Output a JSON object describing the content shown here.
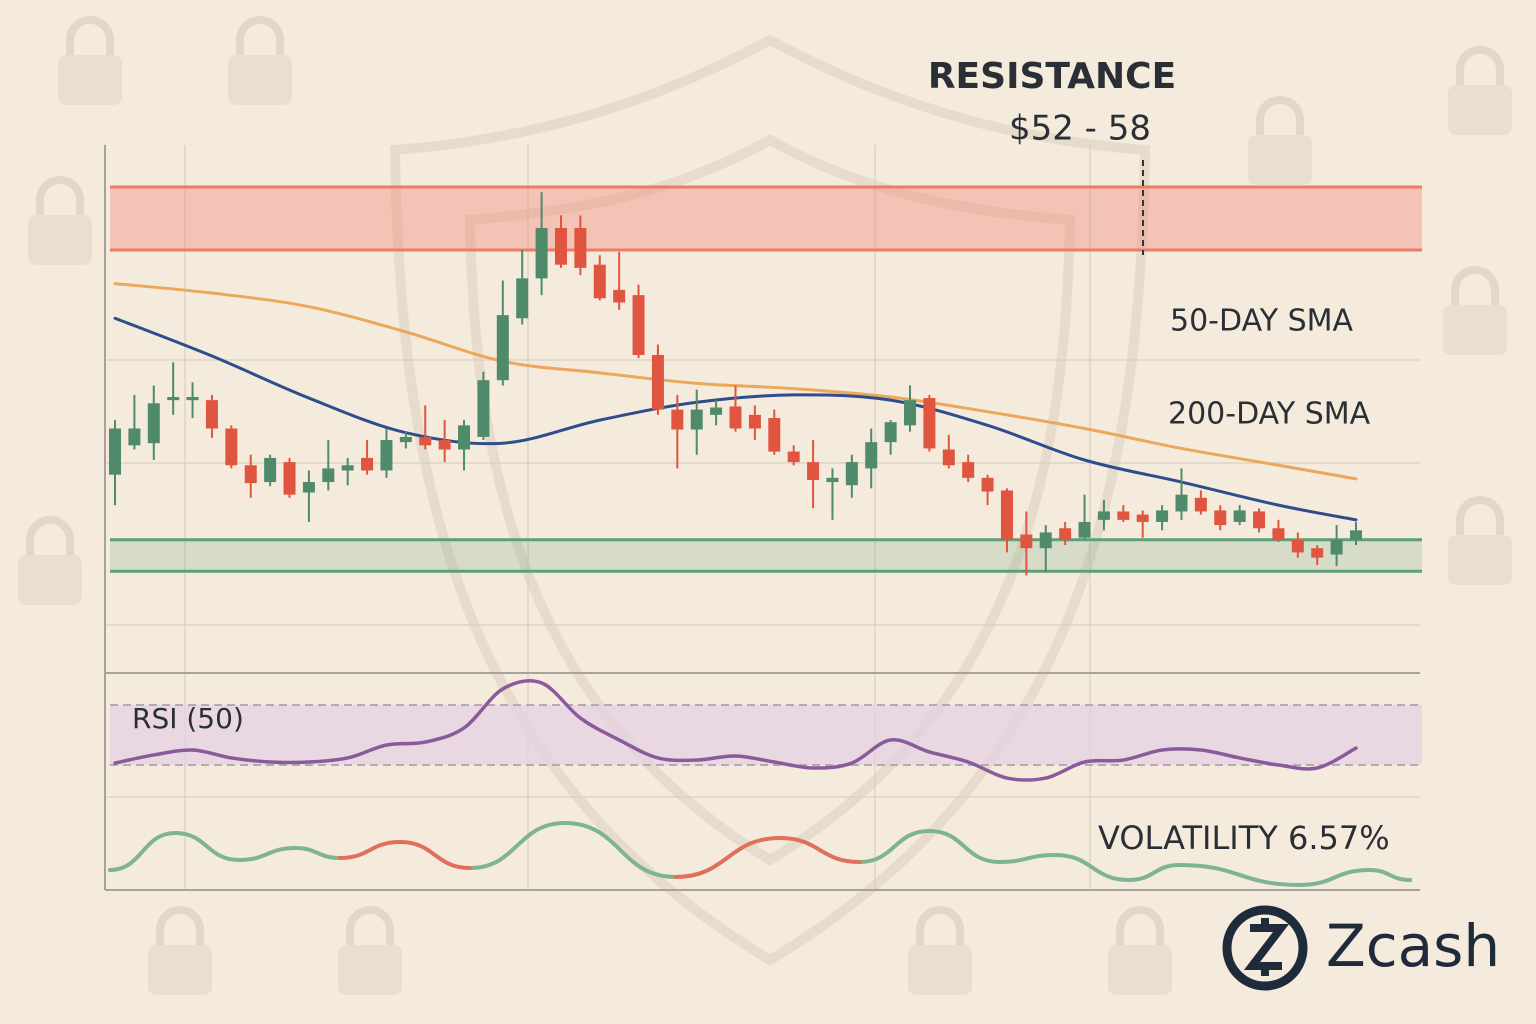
{
  "chart_data": [
    {
      "type": "candlestick",
      "xlim": [
        0,
        64
      ],
      "ylim": [
        12,
        62
      ],
      "up_color": "#4f8a6b",
      "down_color": "#e0553f",
      "open": [
        30.6,
        33.4,
        33.6,
        37.7,
        37.7,
        37.7,
        35.0,
        31.5,
        29.9,
        31.8,
        28.9,
        29.9,
        31.0,
        32.2,
        31.0,
        33.7,
        34.2,
        33.9,
        33.0,
        34.2,
        39.6,
        45.5,
        49.3,
        54.1,
        54.1,
        50.6,
        48.2,
        47.7,
        42.0,
        36.8,
        34.9,
        36.3,
        37.1,
        36.3,
        36.0,
        32.8,
        31.8,
        29.9,
        29.6,
        31.2,
        33.7,
        35.3,
        37.9,
        33.0,
        31.8,
        30.3,
        29.1,
        24.9,
        23.6,
        25.5,
        24.6,
        26.3,
        27.1,
        26.8,
        26.1,
        27.1,
        28.4,
        27.2,
        26.1,
        27.1,
        25.5,
        24.4,
        23.6,
        23.0,
        24.4
      ],
      "high": [
        35.8,
        38.2,
        39.1,
        41.3,
        39.4,
        38.2,
        35.3,
        32.5,
        32.5,
        32.2,
        31.0,
        33.9,
        32.2,
        33.9,
        35.0,
        34.7,
        37.2,
        35.8,
        35.8,
        40.4,
        49.1,
        52.0,
        57.5,
        55.3,
        55.3,
        51.5,
        51.8,
        48.7,
        43.0,
        38.2,
        38.7,
        37.7,
        39.1,
        37.2,
        36.8,
        33.4,
        33.9,
        31.2,
        32.5,
        35.0,
        35.8,
        39.1,
        38.2,
        34.4,
        32.5,
        30.6,
        29.3,
        27.1,
        25.8,
        26.1,
        28.7,
        28.2,
        27.7,
        27.2,
        27.7,
        31.2,
        29.1,
        27.7,
        27.7,
        27.4,
        26.3,
        25.1,
        23.9,
        25.8,
        26.1
      ],
      "low": [
        27.7,
        33.0,
        32.0,
        36.3,
        36.0,
        34.1,
        31.2,
        28.4,
        29.5,
        28.4,
        26.1,
        29.1,
        29.6,
        30.6,
        30.3,
        33.1,
        33.0,
        31.8,
        31.0,
        33.9,
        39.1,
        44.9,
        47.7,
        50.3,
        49.6,
        47.2,
        46.3,
        41.7,
        36.3,
        31.2,
        32.5,
        35.3,
        34.7,
        33.9,
        32.5,
        31.5,
        27.4,
        26.3,
        28.4,
        29.3,
        32.5,
        34.7,
        32.8,
        31.2,
        29.9,
        27.7,
        23.2,
        21.0,
        21.3,
        23.9,
        24.4,
        25.3,
        26.1,
        24.6,
        25.3,
        26.3,
        26.8,
        25.3,
        25.8,
        25.1,
        24.2,
        22.7,
        22.0,
        21.9,
        23.9
      ],
      "close": [
        35.0,
        35.0,
        37.4,
        38.0,
        38.0,
        35.0,
        31.5,
        29.8,
        32.2,
        28.7,
        29.9,
        31.2,
        31.5,
        31.0,
        33.9,
        34.2,
        33.4,
        33.0,
        35.3,
        39.6,
        45.8,
        49.3,
        54.1,
        50.6,
        50.3,
        47.4,
        47.0,
        42.0,
        36.8,
        34.9,
        36.8,
        37.0,
        35.0,
        35.0,
        32.8,
        31.8,
        30.1,
        30.3,
        31.8,
        33.7,
        35.6,
        37.7,
        33.1,
        31.5,
        30.3,
        29.0,
        24.4,
        23.6,
        25.1,
        24.4,
        26.1,
        27.1,
        26.3,
        26.1,
        27.2,
        28.7,
        27.1,
        25.8,
        27.2,
        25.5,
        24.4,
        23.2,
        22.7,
        24.4,
        25.3
      ],
      "resistance": {
        "title": "RESISTANCE",
        "label": "$52 - 58",
        "range": [
          52,
          58
        ],
        "color": "#f07a6a"
      },
      "support": {
        "range": [
          21.4,
          24.4
        ],
        "color": "#5f9f78"
      },
      "series": [
        {
          "name": "50-DAY SMA",
          "color": "#eca75c",
          "x": [
            0,
            5,
            10,
            15,
            20,
            25,
            30,
            35,
            40,
            45,
            50,
            55,
            60,
            64
          ],
          "values": [
            48.8,
            47.9,
            46.6,
            44.2,
            41.4,
            40.3,
            39.3,
            38.8,
            38.0,
            36.6,
            35.0,
            33.1,
            31.5,
            30.2
          ]
        },
        {
          "name": "200-DAY SMA",
          "color": "#2e4d8c",
          "x": [
            0,
            5,
            10,
            15,
            20,
            25,
            30,
            35,
            40,
            45,
            50,
            55,
            60,
            64
          ],
          "values": [
            45.5,
            41.9,
            37.9,
            34.6,
            33.6,
            35.8,
            37.5,
            38.2,
            37.7,
            35.3,
            32.0,
            29.9,
            27.7,
            26.3
          ]
        }
      ]
    },
    {
      "type": "line",
      "label": "RSI (50)",
      "xlim": [
        0,
        64
      ],
      "ylim": [
        0,
        100
      ],
      "band": [
        30,
        70
      ],
      "band_color": "#e4d0e4",
      "series": [
        {
          "color": "#8a5a9c",
          "x": [
            0,
            2,
            4,
            6,
            8,
            10,
            12,
            14,
            16,
            18,
            20,
            22,
            24,
            26,
            28,
            30,
            32,
            34,
            36,
            38,
            40,
            42,
            44,
            46,
            48,
            50,
            52,
            54,
            56,
            58,
            60,
            62,
            64
          ],
          "values": [
            31.3,
            36.7,
            40.0,
            34.7,
            32.0,
            32.0,
            34.7,
            43.3,
            45.3,
            54.7,
            80.7,
            84.7,
            61.3,
            46.7,
            34.7,
            33.3,
            36.0,
            32.0,
            28.0,
            31.3,
            46.7,
            38.7,
            32.0,
            21.3,
            21.3,
            32.0,
            33.3,
            40.0,
            40.0,
            34.7,
            30.0,
            28.0,
            41.3
          ]
        }
      ]
    },
    {
      "type": "line",
      "label": "VOLATILITY 6.57%",
      "xlim": [
        0,
        64
      ],
      "ylim": [
        0,
        100
      ],
      "smooth": "wave",
      "series": [
        {
          "color": "#7fb394",
          "x": [
            -0.26,
            3.1,
            6.4,
            9.3,
            11.6,
            14.7,
            18.3,
            23.2,
            28.9,
            34.3,
            38.4,
            42.0,
            45.6,
            48.5,
            52.3,
            54.9,
            61.1,
            64.7,
            66.8
          ],
          "values": [
            25.0,
            71.3,
            37.5,
            52.5,
            40.0,
            null,
            27.5,
            83.8,
            16.3,
            null,
            35.0,
            73.8,
            35.0,
            43.8,
            12.5,
            31.3,
            6.3,
            25.0,
            12.5
          ]
        },
        {
          "color": "#e0705c",
          "x": [
            -0.26,
            3.1,
            6.4,
            9.3,
            11.6,
            14.7,
            18.3,
            23.2,
            28.9,
            34.3,
            38.4,
            42.0,
            45.6,
            48.5,
            52.3,
            54.9,
            61.1,
            64.7,
            66.8
          ],
          "values": [
            null,
            null,
            null,
            null,
            40.0,
            60.0,
            27.5,
            null,
            16.3,
            65.0,
            35.0,
            null,
            null,
            null,
            null,
            null,
            null,
            null,
            null
          ]
        }
      ]
    }
  ],
  "brand": "Zcash"
}
